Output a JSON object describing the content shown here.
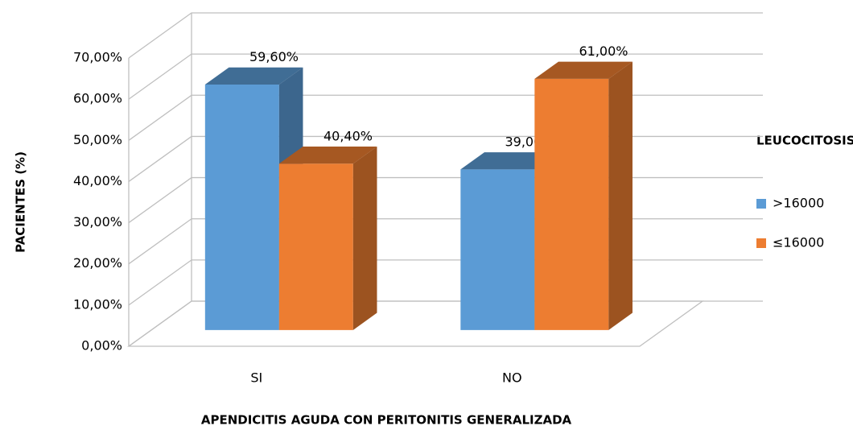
{
  "chart_data": {
    "type": "bar3d",
    "y_axis_label": "PACIENTES (%)",
    "x_axis_label": "APENDICITIS AGUDA CON PERITONITIS GENERALIZADA",
    "legend_title": "LEUCOCITOSIS",
    "categories": [
      "SI",
      "NO"
    ],
    "series": [
      {
        "name": ">16000",
        "color": "#5b9bd5",
        "values": [
          59.6,
          39.0
        ],
        "value_labels": [
          "59,60%",
          "39,00%"
        ]
      },
      {
        "name": "≤16000",
        "color": "#ed7d31",
        "values": [
          40.4,
          61.0
        ],
        "value_labels": [
          "40,40%",
          "61,00%"
        ]
      }
    ],
    "ylim": [
      0,
      70
    ],
    "yticks": [
      {
        "value": 0,
        "label": "0,00%"
      },
      {
        "value": 10,
        "label": "10,00%"
      },
      {
        "value": 20,
        "label": "20,00%"
      },
      {
        "value": 30,
        "label": "30,00%"
      },
      {
        "value": 40,
        "label": "40,00%"
      },
      {
        "value": 50,
        "label": "50,00%"
      },
      {
        "value": 60,
        "label": "60,00%"
      },
      {
        "value": 70,
        "label": "70,00%"
      }
    ],
    "grid": true,
    "legend": "right"
  }
}
